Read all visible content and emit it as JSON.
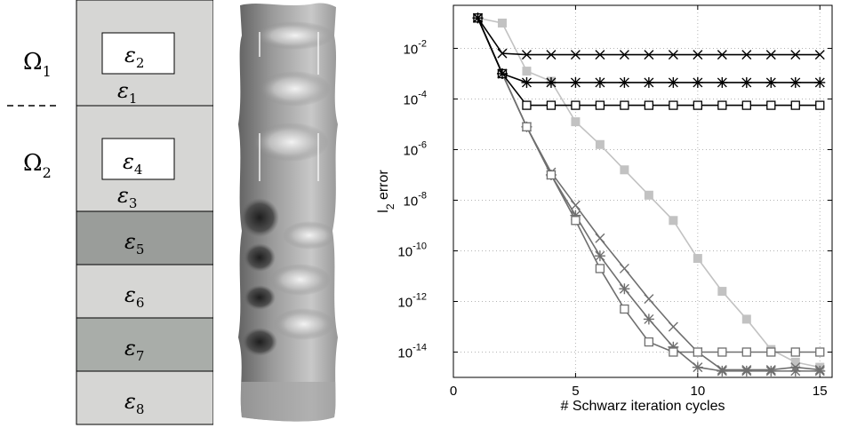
{
  "domain_labels": {
    "omega1": "Ω",
    "omega1_sub": "1",
    "omega2": "Ω",
    "omega2_sub": "2"
  },
  "layers": [
    {
      "sym": "ε",
      "sub": "1",
      "inner_sym": "ε",
      "inner_sub": "2",
      "color": "#d6d6d4"
    },
    {
      "sym": "ε",
      "sub": "3",
      "inner_sym": "ε",
      "inner_sub": "4",
      "color": "#d6d6d4"
    },
    {
      "sym": "ε",
      "sub": "5",
      "color": "#9a9d9a"
    },
    {
      "sym": "ε",
      "sub": "6",
      "color": "#d6d6d4"
    },
    {
      "sym": "ε",
      "sub": "7",
      "color": "#a9ada9"
    },
    {
      "sym": "ε",
      "sub": "8",
      "color": "#d6d6d4"
    }
  ],
  "chart_data": {
    "type": "line",
    "xlabel": "# Schwarz iteration cycles",
    "ylabel": "l_2 error",
    "ylabel_main": "l",
    "ylabel_sub": "2",
    "ylabel_rest": " error",
    "xlim": [
      0,
      15.5
    ],
    "ylim_log10": [
      -15,
      -0.3
    ],
    "yscale": "log",
    "grid": true,
    "xticks": [
      "0",
      "5",
      "10",
      "15"
    ],
    "xtick_values": [
      0,
      5,
      10,
      15
    ],
    "yticks": [
      {
        "base": "10",
        "exp": "-2",
        "log10": -2
      },
      {
        "base": "10",
        "exp": "-4",
        "log10": -4
      },
      {
        "base": "10",
        "exp": "-6",
        "log10": -6
      },
      {
        "base": "10",
        "exp": "-8",
        "log10": -8
      },
      {
        "base": "10",
        "exp": "-10",
        "log10": -10
      },
      {
        "base": "10",
        "exp": "-12",
        "log10": -12
      },
      {
        "base": "10",
        "exp": "-14",
        "log10": -14
      }
    ],
    "series": [
      {
        "marker": "x",
        "color": "#000000",
        "x": [
          1,
          2,
          3,
          4,
          5,
          6,
          7,
          8,
          9,
          10,
          11,
          12,
          13,
          14,
          15
        ],
        "log10_y": [
          -0.8,
          -2.2,
          -2.25,
          -2.25,
          -2.25,
          -2.25,
          -2.25,
          -2.25,
          -2.25,
          -2.25,
          -2.25,
          -2.25,
          -2.25,
          -2.25,
          -2.25
        ]
      },
      {
        "marker": "star",
        "color": "#000000",
        "x": [
          1,
          2,
          3,
          4,
          5,
          6,
          7,
          8,
          9,
          10,
          11,
          12,
          13,
          14,
          15
        ],
        "log10_y": [
          -0.8,
          -3.0,
          -3.35,
          -3.35,
          -3.35,
          -3.35,
          -3.35,
          -3.35,
          -3.35,
          -3.35,
          -3.35,
          -3.35,
          -3.35,
          -3.35,
          -3.35
        ]
      },
      {
        "marker": "square",
        "color": "#000000",
        "x": [
          1,
          2,
          3,
          4,
          5,
          6,
          7,
          8,
          9,
          10,
          11,
          12,
          13,
          14,
          15
        ],
        "log10_y": [
          -0.8,
          -3.0,
          -4.25,
          -4.25,
          -4.25,
          -4.25,
          -4.25,
          -4.25,
          -4.25,
          -4.25,
          -4.25,
          -4.25,
          -4.25,
          -4.25,
          -4.25
        ]
      },
      {
        "marker": "filled-square",
        "color": "#c2c2c2",
        "x": [
          1,
          2,
          3,
          4,
          5,
          6,
          7,
          8,
          9,
          10,
          11,
          12,
          13,
          14,
          15
        ],
        "log10_y": [
          -0.8,
          -1.0,
          -2.9,
          -3.3,
          -4.9,
          -5.8,
          -6.8,
          -7.8,
          -8.8,
          -10.3,
          -11.6,
          -12.7,
          -13.9,
          -14.4,
          -14.6
        ]
      },
      {
        "marker": "x",
        "color": "#6f6f6f",
        "x": [
          1,
          2,
          3,
          4,
          5,
          6,
          7,
          8,
          9,
          10,
          11,
          12,
          13,
          14,
          15
        ],
        "log10_y": [
          -0.8,
          -3.0,
          -5.1,
          -6.9,
          -8.2,
          -9.5,
          -10.7,
          -11.9,
          -13.0,
          -14.0,
          -14.7,
          -14.7,
          -14.7,
          -14.6,
          -14.7
        ]
      },
      {
        "marker": "star",
        "color": "#6f6f6f",
        "x": [
          1,
          2,
          3,
          4,
          5,
          6,
          7,
          8,
          9,
          10,
          11,
          12,
          13,
          14,
          15
        ],
        "log10_y": [
          -0.8,
          -3.0,
          -5.1,
          -7.0,
          -8.6,
          -10.2,
          -11.5,
          -12.7,
          -13.8,
          -14.6,
          -14.75,
          -14.75,
          -14.75,
          -14.75,
          -14.75
        ]
      },
      {
        "marker": "square",
        "color": "#6f6f6f",
        "x": [
          1,
          2,
          3,
          4,
          5,
          6,
          7,
          8,
          9,
          10,
          11,
          12,
          13,
          14,
          15
        ],
        "log10_y": [
          -0.8,
          -3.0,
          -5.1,
          -7.0,
          -8.8,
          -10.7,
          -12.3,
          -13.6,
          -14.0,
          -14.0,
          -14.0,
          -14.0,
          -14.0,
          -14.0,
          -14.0
        ]
      }
    ]
  }
}
